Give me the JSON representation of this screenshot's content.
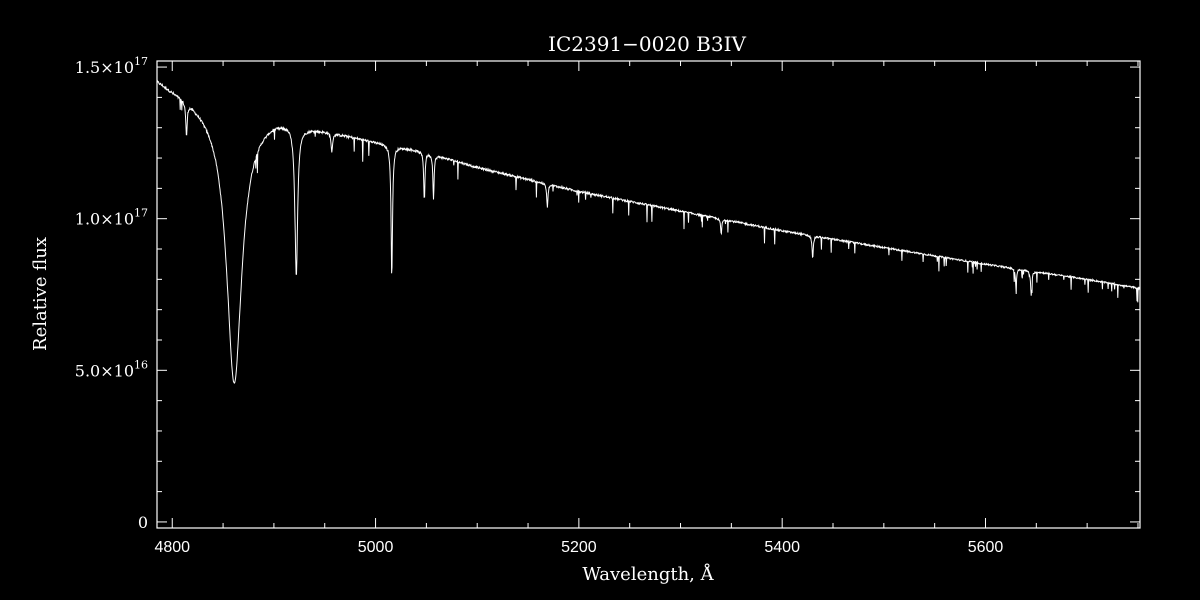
{
  "colors": {
    "background": "#000000",
    "foreground": "#ffffff"
  },
  "chart_data": {
    "type": "line",
    "title": "IC2391−0020   B3IV",
    "xlabel": "Wavelength, Å",
    "ylabel": "Relative flux",
    "xlim": [
      4785,
      5752
    ],
    "ylim": [
      -2000000000000000.0,
      1.52e+17
    ],
    "x_ticks": [
      {
        "value": 4800,
        "label": "4800"
      },
      {
        "value": 5000,
        "label": "5000"
      },
      {
        "value": 5200,
        "label": "5200"
      },
      {
        "value": 5400,
        "label": "5400"
      },
      {
        "value": 5600,
        "label": "5600"
      }
    ],
    "y_ticks": [
      {
        "value": 0,
        "label_mantissa": "0",
        "label_exp": ""
      },
      {
        "value": 5e+16,
        "label_mantissa": "5.0×10",
        "label_exp": "16"
      },
      {
        "value": 1e+17,
        "label_mantissa": "1.0×10",
        "label_exp": "17"
      },
      {
        "value": 1.5e+17,
        "label_mantissa": "1.5×10",
        "label_exp": "17"
      }
    ],
    "x_minor_step": 50,
    "y_minor_step": 1e+16,
    "grid": false,
    "continuum": [
      [
        4785,
        1.465e+17
      ],
      [
        4800,
        1.435e+17
      ],
      [
        4830,
        1.385e+17
      ],
      [
        4850,
        1.355e+17
      ],
      [
        4875,
        1.335e+17
      ],
      [
        4900,
        1.34e+17
      ],
      [
        4915,
        1.33e+17
      ],
      [
        4930,
        1.31e+17
      ],
      [
        4950,
        1.295e+17
      ],
      [
        5000,
        1.255e+17
      ],
      [
        5050,
        1.22e+17
      ],
      [
        5100,
        1.17e+17
      ],
      [
        5150,
        1.13e+17
      ],
      [
        5200,
        1.09e+17
      ],
      [
        5300,
        1.025e+17
      ],
      [
        5400,
        9.6e+16
      ],
      [
        5500,
        9.05e+16
      ],
      [
        5600,
        8.5e+16
      ],
      [
        5700,
        8e+16
      ],
      [
        5752,
        7.7e+16
      ]
    ],
    "absorption_lines": [
      {
        "wavelength": 4861,
        "depth": 0.66,
        "width": 9
      },
      {
        "wavelength": 4922,
        "depth": 0.38,
        "width": 1.6
      },
      {
        "wavelength": 5016,
        "depth": 0.34,
        "width": 0.9
      },
      {
        "wavelength": 4814,
        "depth": 0.08,
        "width": 0.8
      },
      {
        "wavelength": 4957,
        "depth": 0.05,
        "width": 0.8
      },
      {
        "wavelength": 5048,
        "depth": 0.13,
        "width": 0.7
      },
      {
        "wavelength": 5057,
        "depth": 0.12,
        "width": 0.7
      },
      {
        "wavelength": 5169,
        "depth": 0.07,
        "width": 0.7
      },
      {
        "wavelength": 5340,
        "depth": 0.05,
        "width": 0.7
      },
      {
        "wavelength": 5430,
        "depth": 0.08,
        "width": 0.7
      },
      {
        "wavelength": 5630,
        "depth": 0.07,
        "width": 0.7
      },
      {
        "wavelength": 5645,
        "depth": 0.1,
        "width": 0.7
      }
    ]
  }
}
